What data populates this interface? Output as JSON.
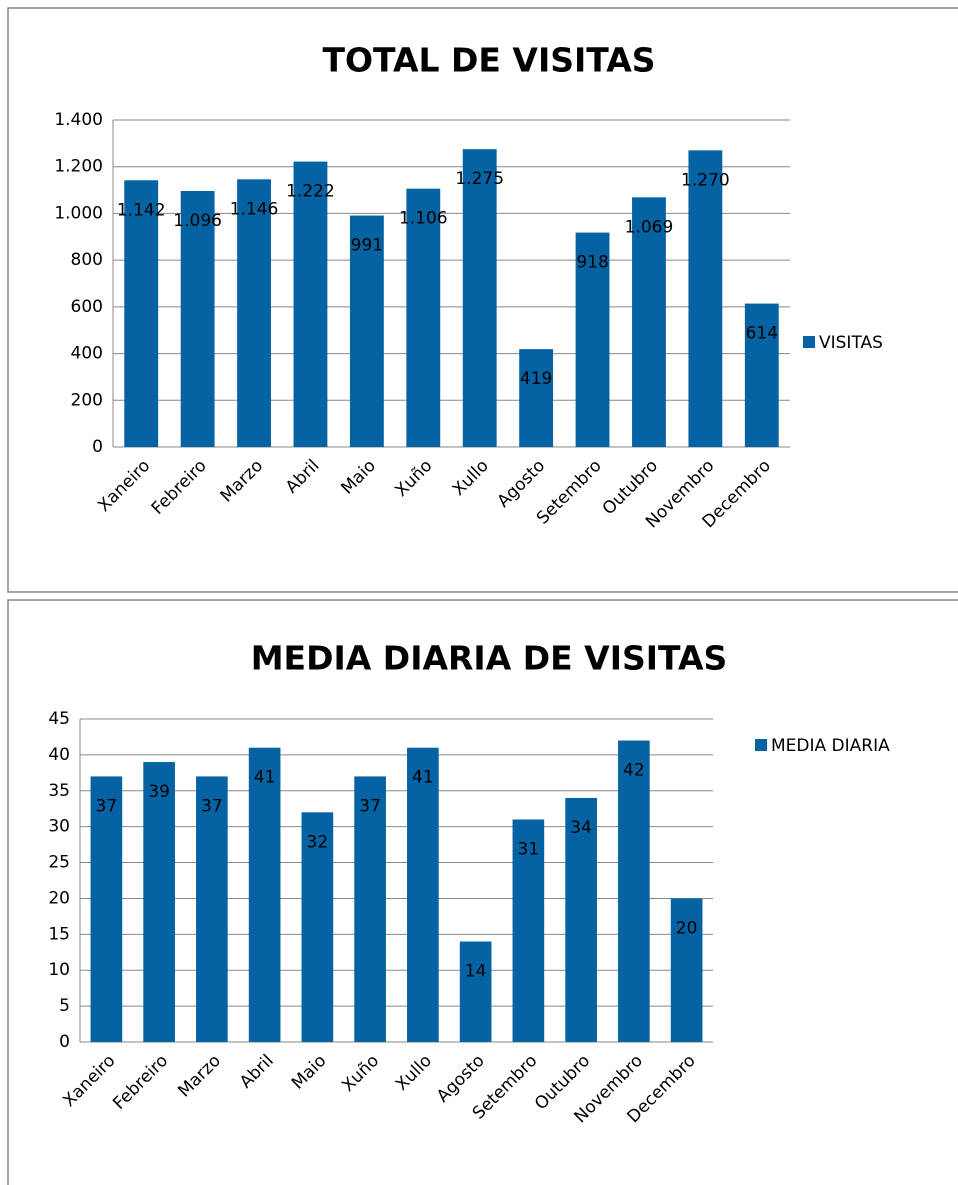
{
  "chart_data": [
    {
      "type": "bar",
      "title": "TOTAL DE VISITAS",
      "categories": [
        "Xaneiro",
        "Febreiro",
        "Marzo",
        "Abril",
        "Maio",
        "Xuño",
        "Xullo",
        "Agosto",
        "Setembro",
        "Outubro",
        "Novembro",
        "Decembro"
      ],
      "series": [
        {
          "name": "VISITAS",
          "color": "#0563a3",
          "values": [
            1142,
            1096,
            1146,
            1222,
            991,
            1106,
            1275,
            419,
            918,
            1069,
            1270,
            614
          ],
          "value_labels": [
            "1.142",
            "1.096",
            "1.146",
            "1.222",
            "991",
            "1.106",
            "1.275",
            "419",
            "918",
            "1.069",
            "1.270",
            "614"
          ]
        }
      ],
      "ylim": [
        0,
        1400
      ],
      "yticks": [
        0,
        {
          "value": 200,
          "label": "200"
        },
        400,
        600,
        800,
        {
          "value": 1000,
          "label": "1.000"
        },
        {
          "value": 1200,
          "label": "1.200"
        },
        {
          "value": 1400,
          "label": "1.400"
        }
      ],
      "grid": true,
      "legend": "right"
    },
    {
      "type": "bar",
      "title": "MEDIA DIARIA DE VISITAS",
      "categories": [
        "Xaneiro",
        "Febreiro",
        "Marzo",
        "Abril",
        "Maio",
        "Xuño",
        "Xullo",
        "Agosto",
        "Setembro",
        "Outubro",
        "Novembro",
        "Decembro"
      ],
      "series": [
        {
          "name": "MEDIA DIARIA",
          "color": "#0563a3",
          "values": [
            37,
            39,
            37,
            41,
            32,
            37,
            41,
            14,
            31,
            34,
            42,
            20
          ]
        }
      ],
      "ylim": [
        0,
        45
      ],
      "yticks": [
        0,
        5,
        10,
        15,
        20,
        25,
        30,
        35,
        40,
        45
      ],
      "grid": true,
      "legend": "right"
    }
  ]
}
